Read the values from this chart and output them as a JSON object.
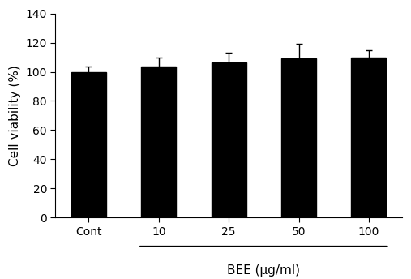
{
  "categories": [
    "Cont",
    "10",
    "25",
    "50",
    "100"
  ],
  "values": [
    100.0,
    103.5,
    106.5,
    109.0,
    109.5
  ],
  "errors": [
    3.5,
    6.0,
    6.5,
    10.0,
    5.5
  ],
  "bar_color": "#000000",
  "bar_width": 0.5,
  "ylabel": "Cell viability (%)",
  "xlabel_main": "BEE (μg/ml)",
  "ylim": [
    0,
    140
  ],
  "yticks": [
    0,
    20,
    40,
    60,
    80,
    100,
    120,
    140
  ],
  "figsize": [
    5.07,
    3.44
  ],
  "dpi": 100,
  "background_color": "#ffffff",
  "ylabel_fontsize": 11,
  "xlabel_fontsize": 11,
  "tick_fontsize": 10,
  "error_capsize": 3,
  "error_linewidth": 1.0
}
